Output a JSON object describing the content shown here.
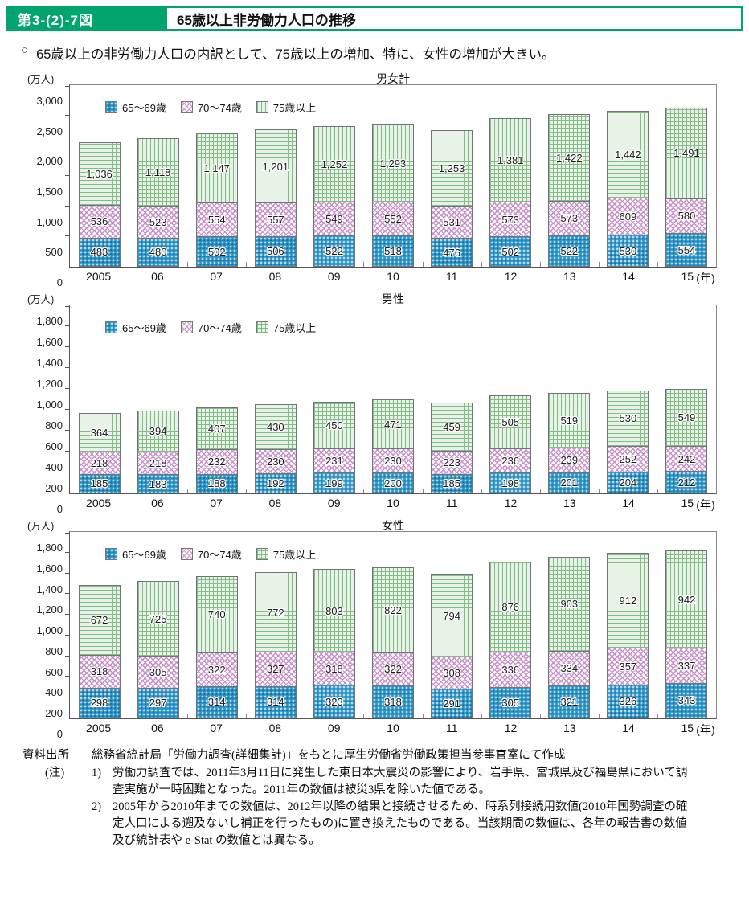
{
  "accent_color": "#00a56d",
  "header": {
    "figure_label": "第3-(2)-7図",
    "title": "65歳以上非労働力人口の推移"
  },
  "summary": {
    "marker": "○",
    "text": "65歳以上の非労働力人口の内訳として、75歳以上の増加、特に、女性の増加が大きい。"
  },
  "colors": {
    "age_65_69": "#2b93c4",
    "age_70_74": "#c791c7",
    "age_75_plus": "#85bb87"
  },
  "chart_data": [
    {
      "type": "bar",
      "stacked": true,
      "title": "男女計",
      "unit_label": "(万人)",
      "x_axis_unit": "(年)",
      "categories": [
        "2005",
        "06",
        "07",
        "08",
        "09",
        "10",
        "11",
        "12",
        "13",
        "14",
        "15"
      ],
      "series": [
        {
          "name": "65〜69歳",
          "values": [
            483,
            480,
            502,
            506,
            522,
            518,
            476,
            502,
            522,
            530,
            554
          ]
        },
        {
          "name": "70〜74歳",
          "values": [
            536,
            523,
            554,
            557,
            549,
            552,
            531,
            573,
            573,
            609,
            580
          ]
        },
        {
          "name": "75歳以上",
          "values": [
            1036,
            1118,
            1147,
            1201,
            1252,
            1293,
            1253,
            1381,
            1422,
            1442,
            1491
          ]
        }
      ],
      "ylim": [
        0,
        3000
      ],
      "ytick_step": 500,
      "legend_position": "top-left",
      "grid": false
    },
    {
      "type": "bar",
      "stacked": true,
      "title": "男性",
      "unit_label": "(万人)",
      "x_axis_unit": "(年)",
      "categories": [
        "2005",
        "06",
        "07",
        "08",
        "09",
        "10",
        "11",
        "12",
        "13",
        "14",
        "15"
      ],
      "series": [
        {
          "name": "65〜69歳",
          "values": [
            185,
            183,
            188,
            192,
            199,
            200,
            185,
            198,
            201,
            204,
            212
          ]
        },
        {
          "name": "70〜74歳",
          "values": [
            218,
            218,
            232,
            230,
            231,
            230,
            223,
            236,
            239,
            252,
            242
          ]
        },
        {
          "name": "75歳以上",
          "values": [
            364,
            394,
            407,
            430,
            450,
            471,
            459,
            505,
            519,
            530,
            549
          ]
        }
      ],
      "ylim": [
        0,
        1800
      ],
      "ytick_step": 200,
      "legend_position": "top-left",
      "grid": false
    },
    {
      "type": "bar",
      "stacked": true,
      "title": "女性",
      "unit_label": "(万人)",
      "x_axis_unit": "(年)",
      "categories": [
        "2005",
        "06",
        "07",
        "08",
        "09",
        "10",
        "11",
        "12",
        "13",
        "14",
        "15"
      ],
      "series": [
        {
          "name": "65〜69歳",
          "values": [
            298,
            297,
            314,
            314,
            323,
            318,
            291,
            305,
            321,
            326,
            343
          ]
        },
        {
          "name": "70〜74歳",
          "values": [
            318,
            305,
            322,
            327,
            318,
            322,
            308,
            336,
            334,
            357,
            337
          ]
        },
        {
          "name": "75歳以上",
          "values": [
            672,
            725,
            740,
            772,
            803,
            822,
            794,
            876,
            903,
            912,
            942
          ]
        }
      ],
      "ylim": [
        0,
        1800
      ],
      "ytick_step": 200,
      "legend_position": "top-left",
      "grid": false
    }
  ],
  "footer": {
    "source_label": "資料出所",
    "source_text": "総務省統計局「労働力調査(詳細集計)」をもとに厚生労働省労働政策担当参事官室にて作成",
    "note_label": "(注)",
    "notes": [
      {
        "num": "1)",
        "text": "労働力調査では、2011年3月11日に発生した東日本大震災の影響により、岩手県、宮城県及び福島県において調査実施が一時困難となった。2011年の数値は被災3県を除いた値である。"
      },
      {
        "num": "2)",
        "text": "2005年から2010年までの数値は、2012年以降の結果と接続させるため、時系列接続用数値(2010年国勢調査の確定人口による遡及ないし補正を行ったもの)に置き換えたものである。当該期間の数値は、各年の報告書の数値及び統計表や e-Stat の数値とは異なる。"
      }
    ]
  }
}
